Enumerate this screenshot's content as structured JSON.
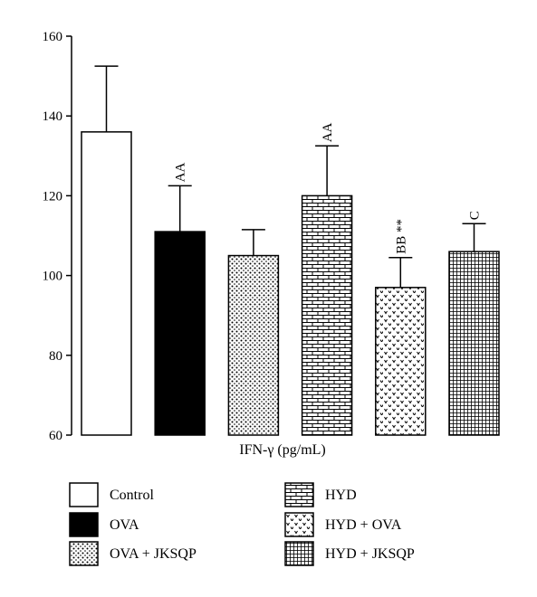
{
  "chart_data": {
    "type": "bar",
    "xlabel": "IFN-γ (pg/mL)",
    "ylabel": "",
    "ylim": [
      60,
      160
    ],
    "yticks": [
      60,
      80,
      100,
      120,
      140,
      160
    ],
    "grid": false,
    "legend_position": "bottom",
    "categories": [
      "Control",
      "OVA",
      "OVA + JKSQP",
      "HYD",
      "HYD + OVA",
      "HYD + JKSQP"
    ],
    "values": [
      136,
      111,
      105,
      120,
      97,
      106
    ],
    "errors": [
      16.5,
      11.5,
      6.5,
      12.5,
      7.5,
      7
    ],
    "annotations": [
      "",
      "AA",
      "",
      "AA",
      "BB **",
      "C"
    ],
    "fills": [
      "white",
      "black",
      "dots",
      "bricks",
      "hearts",
      "grid"
    ]
  }
}
